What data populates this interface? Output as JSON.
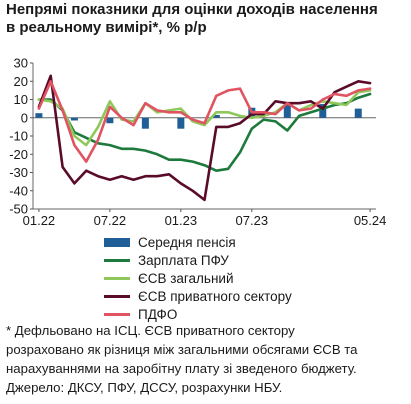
{
  "title_lines": [
    "Непрямі показники для оцінки доходів населення",
    "в реальному вимірі*, % р/р"
  ],
  "footnote_lines": [
    "* Дефльовано на ІСЦ. ЄСВ приватного сектору",
    "розраховано як різниця між загальними обсягами ЄСВ та",
    "нарахуваннями на заробітну плату зі зведеного бюджету.",
    "Джерело: ДКСУ, ПФУ, ДССУ, розрахунки НБУ."
  ],
  "chart_data": {
    "type": "line",
    "title": "Непрямі показники для оцінки доходів населення в реальному вимірі*, % р/р",
    "ylim": [
      -50,
      30
    ],
    "yticks": [
      -50,
      -40,
      -30,
      -20,
      -10,
      0,
      10,
      20,
      30
    ],
    "x_ticks": [
      "01.22",
      "07.22",
      "01.23",
      "07.23",
      "05.24"
    ],
    "x_tick_positions": [
      0,
      6,
      12,
      18,
      28
    ],
    "n_points": 29,
    "grid": false,
    "legend_position": "bottom",
    "series": [
      {
        "name": "Середня пенсія",
        "kind": "bar",
        "color": "#1f5e96",
        "values": [
          2.5,
          null,
          null,
          -1.5,
          null,
          null,
          -3,
          null,
          null,
          -6,
          null,
          null,
          -6,
          null,
          null,
          1.5,
          null,
          null,
          5.5,
          null,
          null,
          7.5,
          null,
          null,
          7.5,
          null,
          null,
          5,
          null
        ]
      },
      {
        "name": "Зарплата ПФУ",
        "kind": "line",
        "color": "#1d7a3c",
        "values": [
          10,
          10,
          4,
          -8,
          -11,
          -14,
          -15,
          -17,
          -17,
          -18,
          -20,
          -23,
          -23,
          -24,
          -26,
          -29,
          -28,
          -19,
          -6,
          -1,
          -2,
          -7,
          1,
          3,
          5,
          7,
          8,
          11,
          13
        ]
      },
      {
        "name": "ЄСВ загальний",
        "kind": "line",
        "color": "#8fc85a",
        "values": [
          10,
          9,
          5,
          -10,
          -15,
          -5,
          9,
          -1,
          -2,
          8,
          3,
          4,
          5,
          -2,
          -4,
          3,
          3,
          1,
          0,
          1,
          3,
          8,
          4,
          7,
          9,
          8,
          7,
          14,
          15
        ]
      },
      {
        "name": "ЄСВ приватного сектору",
        "kind": "line",
        "color": "#5a0b2a",
        "values": [
          6,
          23,
          -27,
          -36,
          -29,
          -32,
          -34,
          -32,
          -34,
          -32,
          -32,
          -31,
          -36,
          -40,
          -45,
          -5,
          -5,
          -3,
          2,
          2,
          9,
          8,
          8,
          9,
          5,
          14,
          17,
          20,
          19
        ]
      },
      {
        "name": "ПДФО",
        "kind": "line",
        "color": "#e05462",
        "values": [
          5,
          20,
          4,
          -15,
          -24,
          -12,
          6,
          0,
          -4,
          8,
          4,
          3,
          3,
          -1,
          -3,
          12,
          15,
          16,
          3,
          3,
          2,
          8,
          4,
          5,
          10,
          13,
          12,
          15,
          16
        ]
      }
    ]
  }
}
